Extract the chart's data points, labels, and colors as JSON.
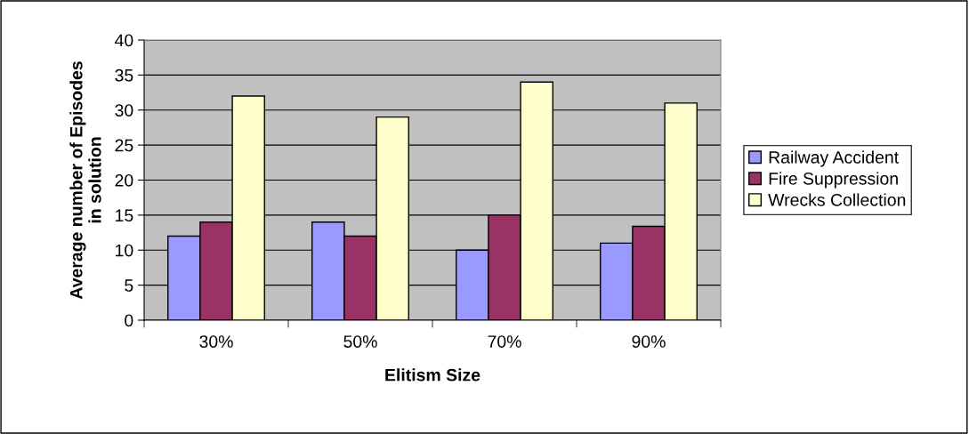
{
  "chart_data": {
    "type": "bar",
    "xlabel": "Elitism Size",
    "ylabel": "Average number of Episodes\nin solution",
    "categories": [
      "30%",
      "50%",
      "70%",
      "90%"
    ],
    "series": [
      {
        "name": "Railway Accident",
        "color": "#9999ff",
        "values": [
          12,
          14,
          10,
          11
        ]
      },
      {
        "name": "Fire Suppression",
        "color": "#993366",
        "values": [
          14,
          12,
          15,
          13.4
        ]
      },
      {
        "name": "Wrecks Collection",
        "color": "#ffffcc",
        "values": [
          32,
          29,
          34,
          31
        ]
      }
    ],
    "ylim": [
      0,
      40
    ],
    "yticks": [
      0,
      5,
      10,
      15,
      20,
      25,
      30,
      35,
      40
    ],
    "grid": "y",
    "legend": "right"
  }
}
